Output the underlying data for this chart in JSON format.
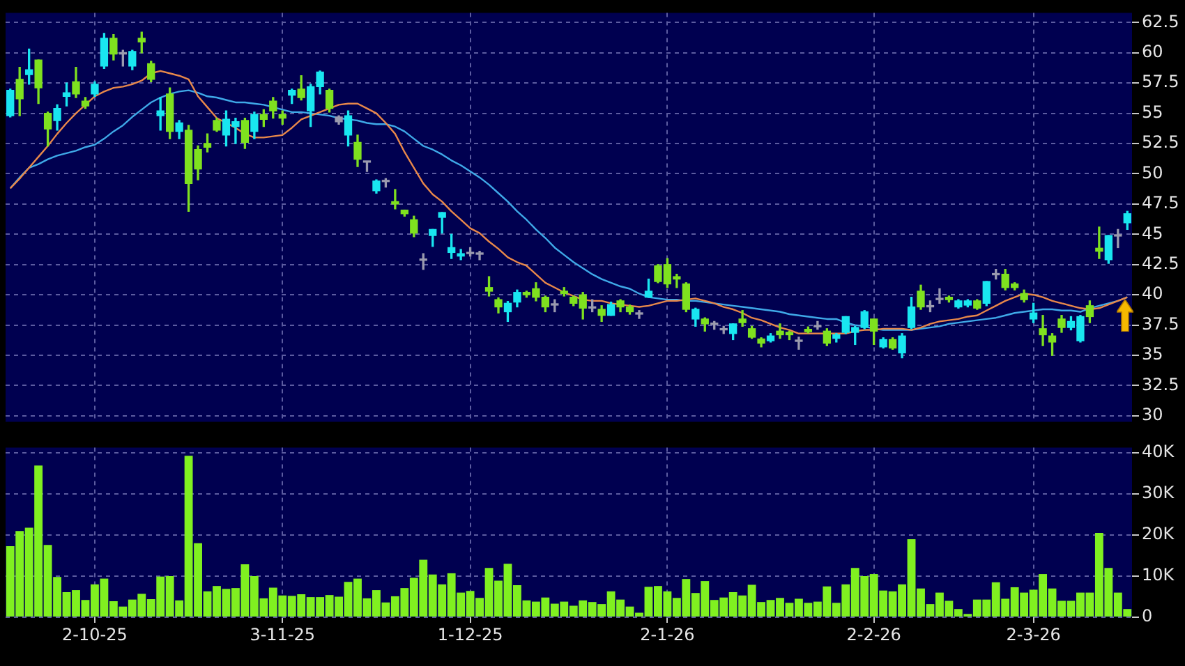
{
  "chart_data": [
    {
      "type": "candlestick",
      "categories": [
        null,
        null,
        null,
        null,
        null,
        null,
        null,
        null,
        null,
        null,
        null,
        null,
        null,
        null,
        null,
        null,
        null,
        null,
        null,
        null,
        null,
        null,
        null,
        null,
        null,
        null,
        null,
        null,
        null,
        null,
        null,
        null,
        null,
        null,
        null,
        null,
        null,
        null,
        null,
        null,
        null,
        null,
        null,
        null,
        null,
        null,
        null,
        null,
        null,
        null,
        null,
        null,
        null,
        null,
        null,
        null,
        null,
        null,
        null,
        null,
        null,
        null,
        null,
        null,
        null,
        null,
        null,
        null,
        null,
        null,
        null,
        null,
        null,
        null,
        null,
        null,
        null,
        null,
        null,
        null,
        null,
        null,
        null,
        null,
        null,
        null,
        null,
        null,
        null,
        null,
        null,
        null,
        null,
        null,
        null,
        null,
        null,
        null,
        null,
        null,
        null,
        null,
        null,
        null,
        null,
        null,
        null,
        null,
        null,
        null,
        null,
        null,
        null,
        null,
        null,
        null,
        null,
        null,
        null,
        null
      ],
      "ohlc": [
        [
          54.8,
          57.0,
          54.7,
          56.9
        ],
        [
          57.8,
          58.8,
          54.8,
          56.2
        ],
        [
          58.2,
          60.3,
          57.4,
          58.6
        ],
        [
          59.4,
          59.4,
          55.8,
          57.1
        ],
        [
          55.0,
          55.1,
          52.3,
          53.7
        ],
        [
          54.4,
          55.7,
          53.6,
          55.4
        ],
        [
          56.4,
          57.5,
          55.6,
          56.7
        ],
        [
          57.6,
          58.8,
          56.3,
          56.6
        ],
        [
          56.0,
          56.3,
          55.4,
          55.6
        ],
        [
          56.6,
          57.6,
          56.4,
          57.4
        ],
        [
          58.9,
          61.6,
          58.7,
          61.2
        ],
        [
          61.2,
          61.5,
          59.4,
          59.9
        ],
        [
          60.0,
          60.2,
          58.9,
          59.9
        ],
        [
          58.9,
          60.2,
          58.6,
          60.1
        ],
        [
          61.2,
          61.7,
          60.0,
          60.9
        ],
        [
          59.1,
          59.3,
          57.6,
          57.8
        ],
        [
          54.8,
          56.3,
          53.6,
          55.2
        ],
        [
          56.6,
          57.1,
          52.9,
          53.5
        ],
        [
          53.5,
          54.4,
          52.9,
          54.2
        ],
        [
          53.6,
          54.0,
          46.9,
          49.2
        ],
        [
          52.0,
          52.3,
          49.5,
          50.4
        ],
        [
          52.5,
          53.3,
          51.8,
          52.2
        ],
        [
          54.4,
          54.6,
          53.5,
          53.6
        ],
        [
          53.2,
          55.2,
          52.3,
          54.5
        ],
        [
          53.9,
          54.6,
          52.5,
          54.3
        ],
        [
          54.4,
          54.6,
          52.1,
          52.6
        ],
        [
          53.5,
          55.1,
          52.9,
          54.9
        ],
        [
          54.9,
          55.3,
          53.9,
          54.5
        ],
        [
          56.0,
          56.3,
          54.6,
          55.2
        ],
        [
          54.9,
          55.2,
          54.1,
          54.6
        ],
        [
          56.5,
          57.0,
          55.8,
          56.9
        ],
        [
          57.0,
          58.1,
          56.1,
          56.3
        ],
        [
          55.2,
          57.4,
          53.9,
          57.2
        ],
        [
          57.2,
          58.5,
          56.6,
          58.4
        ],
        [
          56.9,
          57.0,
          55.1,
          55.4
        ],
        [
          54.7,
          54.8,
          54.1,
          54.3
        ],
        [
          53.2,
          55.2,
          52.3,
          54.8
        ],
        [
          52.6,
          53.2,
          50.6,
          51.2
        ],
        [
          51.0,
          51.0,
          50.2,
          50.95
        ],
        [
          48.6,
          49.5,
          48.4,
          49.4
        ],
        [
          49.4,
          49.6,
          48.9,
          49.35
        ],
        [
          47.7,
          48.7,
          47.1,
          47.5
        ],
        [
          47.0,
          47.0,
          46.5,
          46.7
        ],
        [
          46.2,
          46.5,
          44.8,
          45.1
        ],
        [
          42.9,
          43.4,
          42.1,
          42.85
        ],
        [
          44.9,
          45.4,
          44.0,
          45.4
        ],
        [
          46.4,
          46.8,
          45.1,
          46.8
        ],
        [
          43.5,
          45.0,
          43.0,
          43.9
        ],
        [
          43.2,
          43.75,
          42.9,
          43.4
        ],
        [
          43.4,
          43.9,
          43.2,
          43.5
        ],
        [
          43.4,
          43.6,
          42.9,
          43.35
        ],
        [
          40.6,
          41.5,
          39.9,
          40.3
        ],
        [
          39.6,
          39.75,
          38.5,
          39.0
        ],
        [
          38.6,
          39.45,
          37.8,
          39.3
        ],
        [
          39.4,
          40.4,
          39.0,
          40.2
        ],
        [
          40.2,
          40.3,
          39.8,
          40.0
        ],
        [
          40.5,
          41.0,
          39.5,
          39.8
        ],
        [
          39.8,
          39.9,
          38.6,
          39.0
        ],
        [
          39.2,
          39.6,
          38.6,
          39.15
        ],
        [
          40.3,
          40.6,
          39.9,
          40.1
        ],
        [
          39.8,
          39.9,
          39.1,
          39.3
        ],
        [
          40.0,
          40.2,
          38.0,
          38.9
        ],
        [
          38.95,
          39.6,
          38.6,
          38.9
        ],
        [
          38.8,
          39.1,
          37.8,
          38.3
        ],
        [
          38.3,
          39.4,
          38.3,
          39.2
        ],
        [
          39.5,
          39.6,
          38.6,
          39.0
        ],
        [
          39.0,
          39.15,
          38.4,
          38.6
        ],
        [
          38.45,
          38.7,
          38.05,
          38.4
        ],
        [
          39.8,
          41.3,
          39.8,
          40.3
        ],
        [
          42.4,
          42.5,
          41.0,
          41.1
        ],
        [
          42.5,
          43.0,
          40.6,
          40.9
        ],
        [
          41.5,
          41.7,
          40.6,
          41.3
        ],
        [
          40.9,
          41.0,
          38.6,
          38.8
        ],
        [
          38.0,
          38.9,
          37.4,
          38.8
        ],
        [
          38.0,
          38.1,
          37.0,
          37.6
        ],
        [
          37.6,
          37.8,
          37.15,
          37.55
        ],
        [
          37.15,
          37.4,
          36.8,
          37.1
        ],
        [
          36.8,
          37.6,
          36.3,
          37.6
        ],
        [
          38.0,
          38.7,
          37.4,
          37.7
        ],
        [
          37.2,
          37.4,
          36.4,
          36.5
        ],
        [
          36.35,
          36.45,
          35.7,
          36.0
        ],
        [
          36.2,
          36.8,
          36.1,
          36.6
        ],
        [
          37.0,
          37.6,
          36.4,
          36.7
        ],
        [
          36.9,
          37.0,
          36.3,
          36.7
        ],
        [
          36.2,
          36.5,
          35.5,
          36.15
        ],
        [
          37.15,
          37.35,
          36.85,
          36.95
        ],
        [
          37.4,
          37.8,
          37.15,
          37.35
        ],
        [
          37.0,
          37.2,
          35.8,
          36.0
        ],
        [
          36.4,
          36.8,
          36.1,
          36.7
        ],
        [
          36.9,
          38.2,
          36.8,
          38.2
        ],
        [
          36.9,
          37.4,
          35.9,
          37.3
        ],
        [
          37.3,
          38.7,
          37.2,
          38.6
        ],
        [
          38.0,
          38.0,
          35.9,
          37.0
        ],
        [
          35.7,
          36.45,
          35.6,
          36.3
        ],
        [
          36.3,
          36.45,
          35.5,
          35.6
        ],
        [
          35.2,
          36.8,
          34.8,
          36.6
        ],
        [
          37.3,
          39.8,
          37.2,
          39.0
        ],
        [
          40.3,
          40.8,
          38.8,
          39.0
        ],
        [
          39.05,
          39.5,
          38.6,
          39.0
        ],
        [
          39.65,
          40.5,
          39.3,
          39.6
        ],
        [
          39.8,
          39.9,
          39.4,
          39.6
        ],
        [
          39.0,
          39.6,
          38.9,
          39.5
        ],
        [
          39.15,
          39.6,
          39.0,
          39.5
        ],
        [
          39.5,
          39.6,
          38.8,
          38.9
        ],
        [
          39.3,
          41.1,
          39.1,
          41.1
        ],
        [
          41.7,
          42.1,
          41.3,
          41.65
        ],
        [
          41.7,
          42.1,
          40.4,
          40.6
        ],
        [
          40.9,
          41.0,
          40.4,
          40.6
        ],
        [
          40.1,
          40.4,
          39.4,
          39.6
        ],
        [
          38.0,
          39.3,
          37.7,
          38.5
        ],
        [
          37.2,
          38.3,
          35.8,
          36.7
        ],
        [
          36.6,
          36.8,
          35.0,
          36.1
        ],
        [
          38.0,
          38.3,
          36.9,
          37.3
        ],
        [
          37.3,
          38.2,
          37.1,
          37.8
        ],
        [
          36.2,
          38.3,
          36.1,
          38.2
        ],
        [
          39.1,
          39.5,
          37.7,
          38.2
        ],
        [
          43.85,
          45.6,
          43.0,
          43.6
        ],
        [
          42.9,
          44.9,
          42.6,
          44.9
        ],
        [
          44.85,
          45.4,
          43.9,
          44.9
        ],
        [
          45.95,
          46.9,
          45.4,
          46.7
        ]
      ],
      "colors": [
        "#19e6f0",
        "#7fe11f",
        "#19e6f0",
        "#7fe11f",
        "#7fe11f",
        "#19e6f0",
        "#19e6f0",
        "#7fe11f",
        "#7fe11f",
        "#19e6f0",
        "#19e6f0",
        "#7fe11f",
        "#9a9aae",
        "#19e6f0",
        "#7fe11f",
        "#7fe11f",
        "#19e6f0",
        "#7fe11f",
        "#19e6f0",
        "#7fe11f",
        "#7fe11f",
        "#7fe11f",
        "#7fe11f",
        "#19e6f0",
        "#19e6f0",
        "#7fe11f",
        "#19e6f0",
        "#7fe11f",
        "#7fe11f",
        "#7fe11f",
        "#19e6f0",
        "#7fe11f",
        "#19e6f0",
        "#19e6f0",
        "#7fe11f",
        "#9a9aae",
        "#19e6f0",
        "#7fe11f",
        "#9a9aae",
        "#19e6f0",
        "#9a9aae",
        "#7fe11f",
        "#7fe11f",
        "#7fe11f",
        "#9a9aae",
        "#19e6f0",
        "#19e6f0",
        "#19e6f0",
        "#19e6f0",
        "#9a9aae",
        "#9a9aae",
        "#7fe11f",
        "#7fe11f",
        "#19e6f0",
        "#19e6f0",
        "#7fe11f",
        "#7fe11f",
        "#7fe11f",
        "#9a9aae",
        "#7fe11f",
        "#7fe11f",
        "#7fe11f",
        "#9a9aae",
        "#7fe11f",
        "#19e6f0",
        "#7fe11f",
        "#7fe11f",
        "#9a9aae",
        "#19e6f0",
        "#7fe11f",
        "#7fe11f",
        "#7fe11f",
        "#7fe11f",
        "#19e6f0",
        "#7fe11f",
        "#9a9aae",
        "#9a9aae",
        "#19e6f0",
        "#7fe11f",
        "#7fe11f",
        "#7fe11f",
        "#19e6f0",
        "#7fe11f",
        "#7fe11f",
        "#9a9aae",
        "#7fe11f",
        "#9a9aae",
        "#7fe11f",
        "#19e6f0",
        "#19e6f0",
        "#19e6f0",
        "#19e6f0",
        "#7fe11f",
        "#19e6f0",
        "#7fe11f",
        "#19e6f0",
        "#19e6f0",
        "#7fe11f",
        "#9a9aae",
        "#9a9aae",
        "#7fe11f",
        "#19e6f0",
        "#19e6f0",
        "#7fe11f",
        "#19e6f0",
        "#9a9aae",
        "#7fe11f",
        "#7fe11f",
        "#7fe11f",
        "#19e6f0",
        "#7fe11f",
        "#7fe11f",
        "#7fe11f",
        "#19e6f0",
        "#19e6f0",
        "#7fe11f",
        "#7fe11f",
        "#19e6f0",
        "#9a9aae",
        "#19e6f0"
      ],
      "series": [
        {
          "type": "line",
          "color": "#e8884a",
          "values": [
            48.8,
            49.6,
            50.5,
            51.4,
            52.3,
            53.3,
            54.2,
            55.0,
            55.7,
            56.4,
            56.8,
            57.1,
            57.2,
            57.4,
            57.7,
            58.3,
            58.5,
            58.3,
            58.1,
            57.8,
            56.4,
            55.5,
            54.6,
            54.2,
            53.8,
            53.3,
            53.0,
            53.0,
            53.1,
            53.2,
            53.8,
            54.5,
            54.8,
            55.1,
            55.4,
            55.7,
            55.8,
            55.8,
            55.4,
            55.0,
            54.2,
            53.3,
            51.8,
            50.5,
            49.2,
            48.3,
            47.7,
            46.9,
            46.2,
            45.5,
            45.1,
            44.4,
            43.8,
            43.1,
            42.7,
            42.4,
            41.7,
            41.0,
            40.6,
            40.2,
            39.9,
            39.6,
            39.5,
            39.5,
            39.3,
            39.2,
            39.1,
            39.0,
            39.1,
            39.3,
            39.5,
            39.5,
            39.6,
            39.7,
            39.5,
            39.3,
            39.0,
            38.8,
            38.5,
            38.1,
            37.9,
            37.6,
            37.3,
            37.1,
            36.8,
            36.8,
            36.8,
            36.8,
            36.8,
            36.8,
            37.0,
            37.1,
            37.1,
            37.2,
            37.2,
            37.2,
            37.1,
            37.3,
            37.6,
            37.8,
            37.9,
            38.0,
            38.2,
            38.3,
            38.7,
            39.1,
            39.5,
            39.8,
            40.1,
            40.0,
            39.8,
            39.5,
            39.3,
            39.1,
            38.9,
            38.8,
            38.9,
            39.2,
            39.5,
            39.8
          ]
        },
        {
          "type": "line",
          "color": "#3fa9e8",
          "values": [
            48.8,
            49.7,
            50.5,
            50.8,
            51.2,
            51.5,
            51.7,
            51.9,
            52.2,
            52.4,
            52.9,
            53.5,
            54.0,
            54.7,
            55.3,
            55.9,
            56.3,
            56.6,
            56.8,
            56.9,
            56.7,
            56.4,
            56.3,
            56.1,
            55.9,
            55.9,
            55.8,
            55.7,
            55.5,
            55.3,
            55.1,
            55.1,
            55.0,
            54.9,
            54.8,
            54.6,
            54.5,
            54.4,
            54.2,
            54.1,
            54.1,
            53.9,
            53.5,
            52.9,
            52.3,
            52.0,
            51.6,
            51.1,
            50.7,
            50.2,
            49.7,
            49.1,
            48.4,
            47.7,
            46.9,
            46.2,
            45.4,
            44.7,
            43.9,
            43.3,
            42.7,
            42.2,
            41.7,
            41.3,
            41.0,
            40.7,
            40.5,
            40.1,
            39.8,
            39.7,
            39.6,
            39.6,
            39.5,
            39.5,
            39.4,
            39.3,
            39.2,
            39.1,
            39.0,
            38.9,
            38.8,
            38.7,
            38.6,
            38.4,
            38.3,
            38.2,
            38.1,
            38.0,
            38.0,
            37.7,
            37.5,
            37.4,
            37.2,
            37.1,
            37.1,
            37.1,
            37.1,
            37.2,
            37.3,
            37.4,
            37.6,
            37.7,
            37.8,
            37.9,
            38.0,
            38.1,
            38.3,
            38.5,
            38.6,
            38.7,
            38.8,
            38.8,
            38.7,
            38.7,
            38.6,
            38.9,
            39.1,
            39.3,
            39.5,
            39.8
          ]
        }
      ],
      "ylim": [
        29.5,
        63.3
      ],
      "yticks": [
        30,
        32.5,
        35,
        37.5,
        40,
        42.5,
        45,
        47.5,
        50,
        52.5,
        55,
        57.5,
        60,
        62.5
      ],
      "grid": true,
      "tick_labels": "y"
    },
    {
      "type": "bar",
      "categories": [
        null,
        null,
        null,
        null,
        null,
        null,
        null,
        null,
        null,
        "2-10-25",
        null,
        null,
        null,
        null,
        null,
        null,
        null,
        null,
        null,
        null,
        null,
        null,
        null,
        null,
        null,
        null,
        null,
        null,
        null,
        "3-11-25",
        null,
        null,
        null,
        null,
        null,
        null,
        null,
        null,
        null,
        null,
        null,
        null,
        null,
        null,
        null,
        null,
        null,
        null,
        null,
        "1-12-25",
        null,
        null,
        null,
        null,
        null,
        null,
        null,
        null,
        null,
        null,
        null,
        null,
        null,
        null,
        null,
        null,
        null,
        null,
        null,
        null,
        "2-1-26",
        null,
        null,
        null,
        null,
        null,
        null,
        null,
        null,
        null,
        null,
        null,
        null,
        null,
        null,
        null,
        null,
        null,
        null,
        null,
        null,
        null,
        "2-2-26",
        null,
        null,
        null,
        null,
        null,
        null,
        null,
        null,
        null,
        null,
        null,
        null,
        null,
        null,
        null,
        null,
        "2-3-26",
        null,
        null,
        null,
        null,
        null,
        null,
        null,
        null,
        null,
        null
      ],
      "values": [
        17300,
        21000,
        21800,
        36900,
        17600,
        9800,
        6100,
        6600,
        4200,
        8000,
        9400,
        3900,
        2600,
        4300,
        5700,
        4400,
        9900,
        10000,
        4100,
        39300,
        18000,
        6300,
        7600,
        6900,
        7100,
        12900,
        10000,
        4600,
        7200,
        5300,
        5200,
        5600,
        4900,
        4900,
        5400,
        5000,
        8600,
        9400,
        4600,
        6600,
        3600,
        5100,
        7100,
        9600,
        14000,
        10400,
        8000,
        10700,
        6000,
        6400,
        4700,
        12000,
        8900,
        13000,
        7800,
        4100,
        3800,
        4800,
        3300,
        3800,
        2800,
        4100,
        3700,
        3200,
        6300,
        4300,
        2600,
        1100,
        7400,
        7600,
        6300,
        4700,
        9300,
        5900,
        8800,
        4200,
        4800,
        6100,
        5300,
        7900,
        3700,
        4200,
        4700,
        3500,
        4500,
        3500,
        3800,
        7500,
        3500,
        8000,
        12000,
        10000,
        10500,
        6500,
        6300,
        8000,
        19000,
        7000,
        3200,
        6000,
        4000,
        2000,
        800,
        4300,
        4300,
        8500,
        4500,
        7300,
        6000,
        6700,
        10500,
        7000,
        4000,
        4000,
        6000,
        6000,
        20500,
        12000,
        6000,
        2000
      ],
      "color": "#80f020",
      "ylim": [
        0,
        41300
      ],
      "yticks": [
        0,
        {
          "value": 10000,
          "label": "10K"
        },
        {
          "value": 20000,
          "label": "20K"
        },
        {
          "value": 30000,
          "label": "30K"
        },
        {
          "value": 40000,
          "label": "40K"
        }
      ],
      "grid": true
    }
  ]
}
